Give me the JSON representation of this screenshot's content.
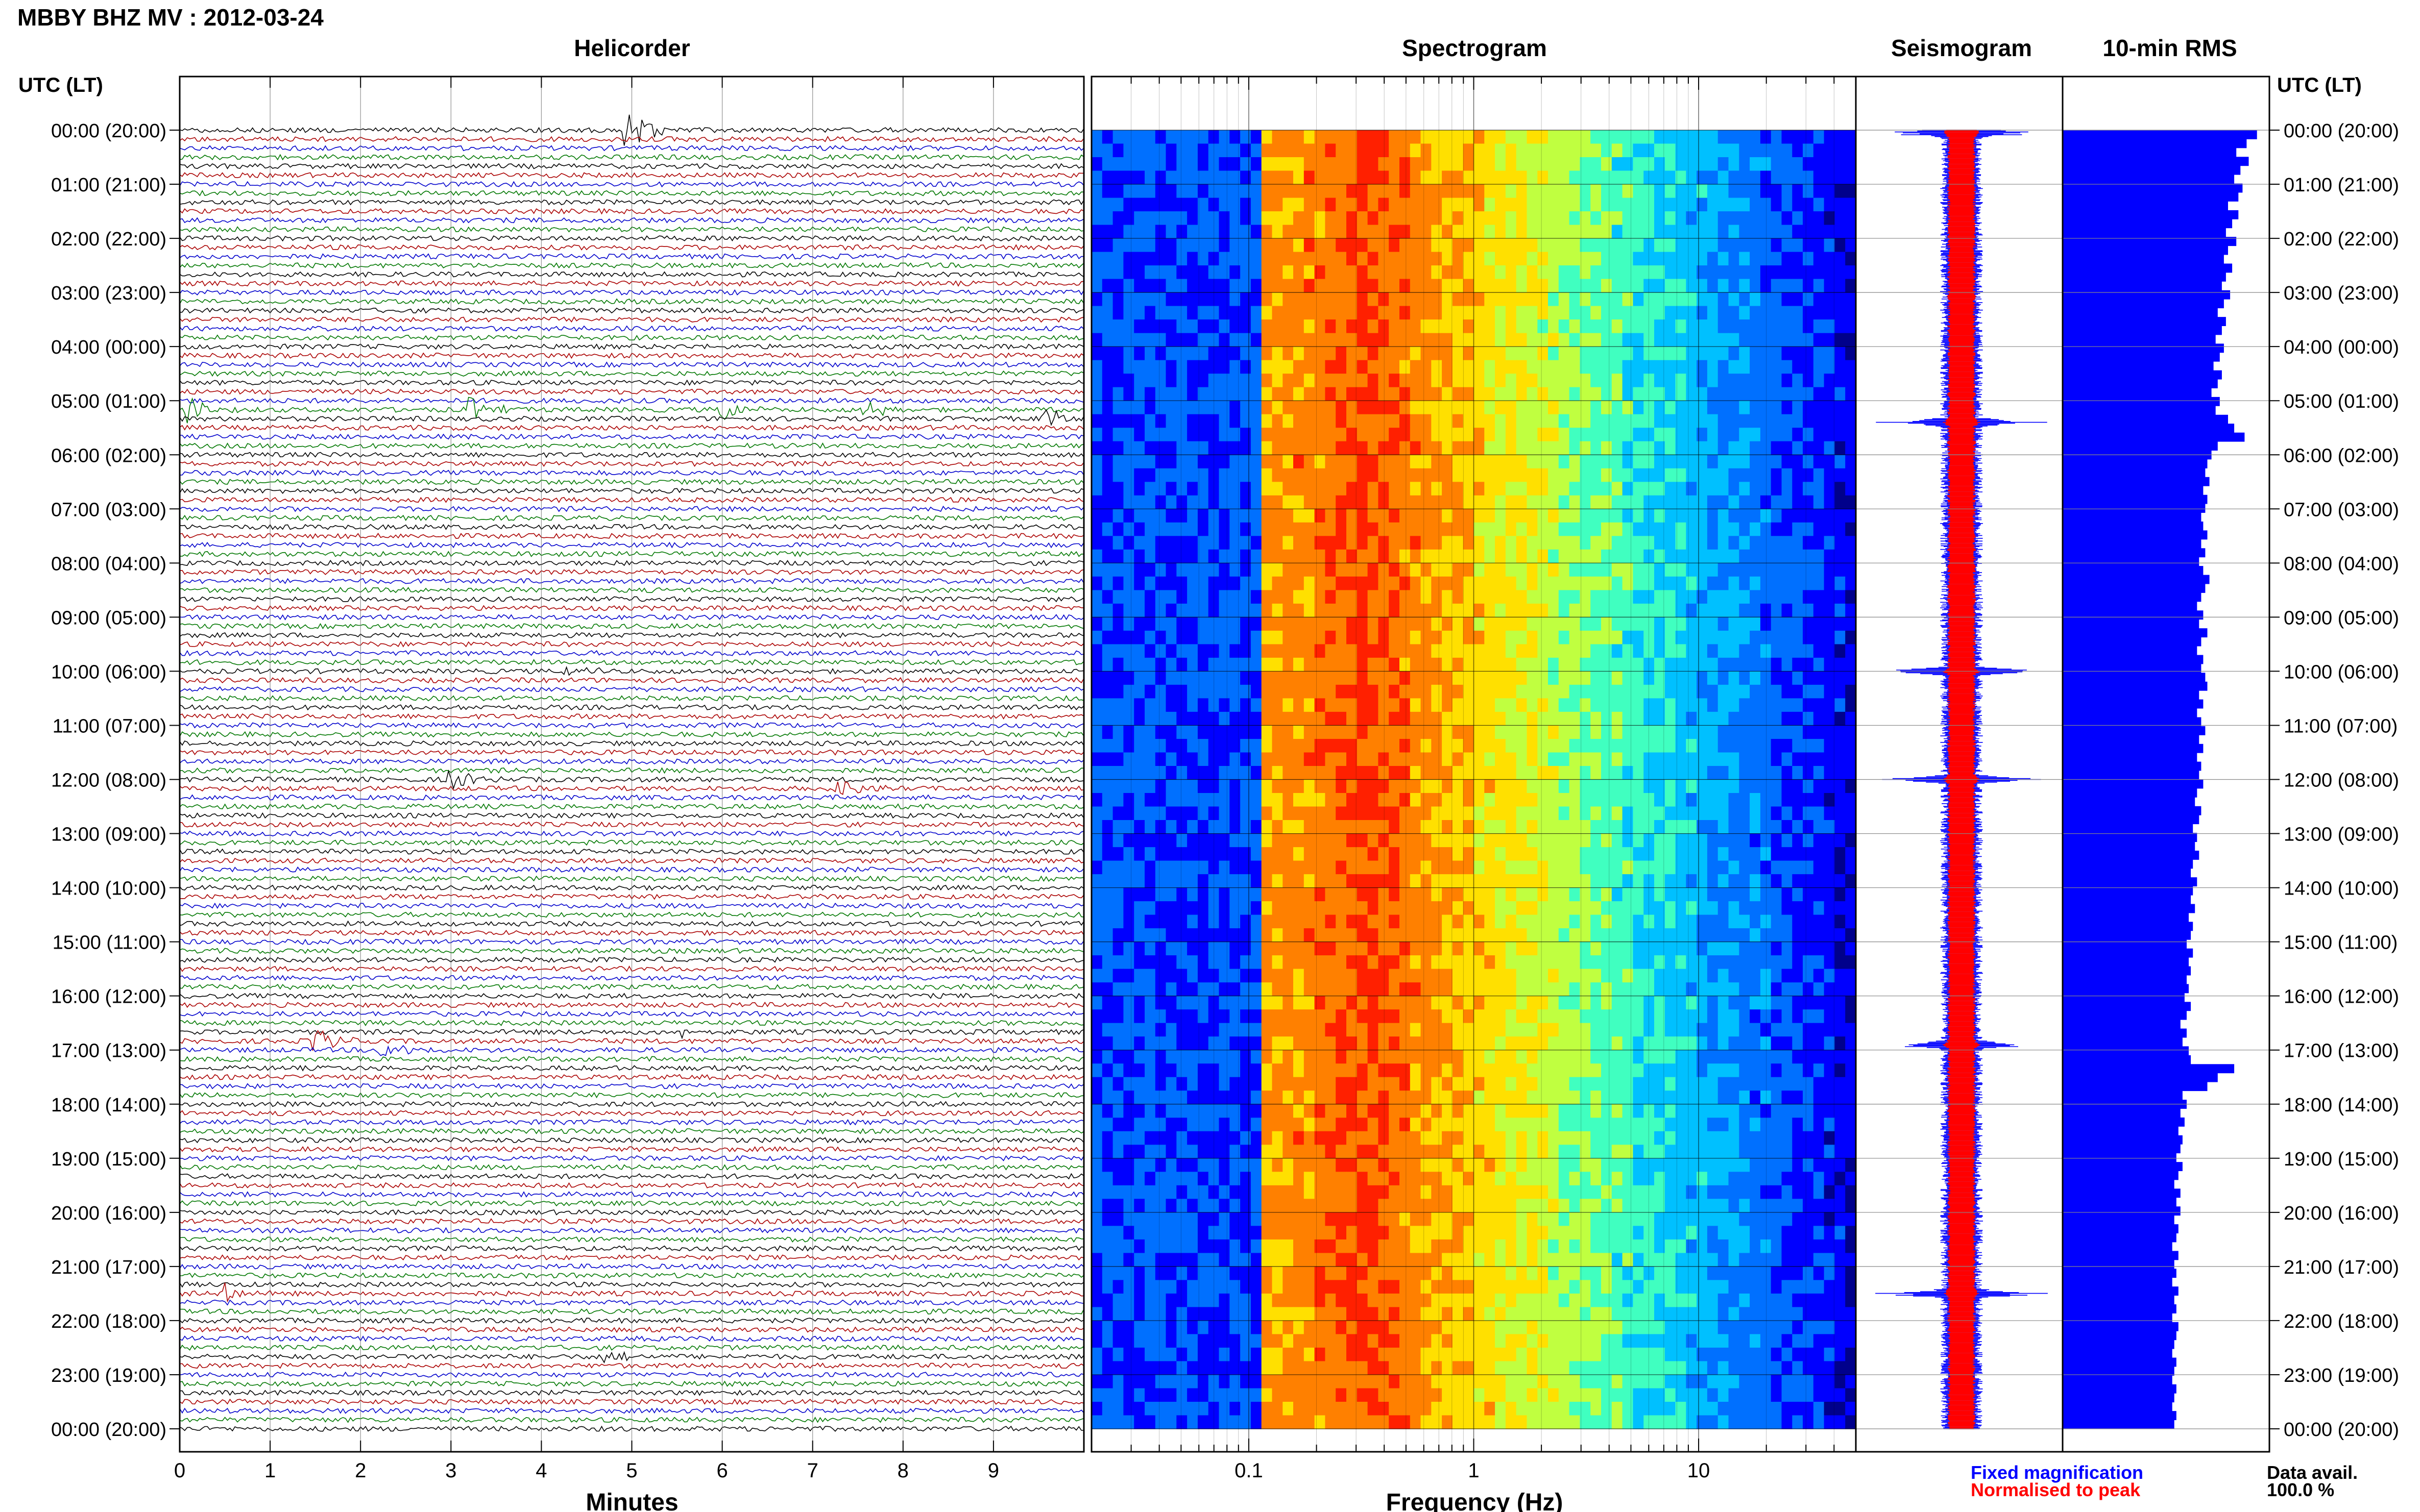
{
  "header": {
    "station_title": "MBBY BHZ MV : 2012-03-24",
    "left_axis_label": "UTC (LT)",
    "right_axis_label": "UTC (LT)"
  },
  "panels": {
    "helicorder": "Helicorder",
    "spectrogram": "Spectrogram",
    "seismogram": "Seismogram",
    "rms": "10-min RMS"
  },
  "legend": {
    "fixed": "Fixed magnification",
    "normalised": "Normalised to peak",
    "fixed_color": "#0000ff",
    "normalised_color": "#ff0000",
    "data_avail_label": "Data avail.",
    "data_avail_value": "100.0 %"
  },
  "chart_data": [
    {
      "type": "line",
      "panel": "helicorder",
      "xlabel": "Minutes",
      "x_ticks": [
        "0",
        "1",
        "2",
        "3",
        "4",
        "5",
        "6",
        "7",
        "8",
        "9"
      ],
      "xlim": [
        0,
        10
      ],
      "y_tick_labels": [
        "00:00 (20:00)",
        "01:00 (21:00)",
        "02:00 (22:00)",
        "03:00 (23:00)",
        "04:00 (00:00)",
        "05:00 (01:00)",
        "06:00 (02:00)",
        "07:00 (03:00)",
        "08:00 (04:00)",
        "09:00 (05:00)",
        "10:00 (06:00)",
        "11:00 (07:00)",
        "12:00 (08:00)",
        "13:00 (09:00)",
        "14:00 (10:00)",
        "15:00 (11:00)",
        "16:00 (12:00)",
        "17:00 (13:00)",
        "18:00 (14:00)",
        "19:00 (15:00)",
        "20:00 (16:00)",
        "21:00 (17:00)",
        "22:00 (18:00)",
        "23:00 (19:00)",
        "00:00 (20:00)"
      ],
      "lines_per_hour": 6,
      "line_colors": [
        "#000000",
        "#aa0000",
        "#0000cc",
        "#007700"
      ],
      "events": [
        {
          "hour": 0.0,
          "minute": 4.95,
          "amp": 2.5
        },
        {
          "hour": 5.1,
          "minute": 0.1,
          "amp": 1.5
        },
        {
          "hour": 5.2,
          "minute": 3.2,
          "amp": 1.5
        },
        {
          "hour": 5.2,
          "minute": 6.0,
          "amp": 1.2
        },
        {
          "hour": 5.2,
          "minute": 7.6,
          "amp": 1.0
        },
        {
          "hour": 5.4,
          "minute": 9.6,
          "amp": 1.2
        },
        {
          "hour": 10.0,
          "minute": 4.3,
          "amp": 0.8
        },
        {
          "hour": 12.0,
          "minute": 3.0,
          "amp": 1.2
        },
        {
          "hour": 12.1,
          "minute": 7.3,
          "amp": 1.4
        },
        {
          "hour": 16.8,
          "minute": 1.5,
          "amp": 1.5
        },
        {
          "hour": 17.0,
          "minute": 2.2,
          "amp": 1.4
        },
        {
          "hour": 16.6,
          "minute": 5.6,
          "amp": 0.8
        },
        {
          "hour": 21.5,
          "minute": 0.5,
          "amp": 1.0
        },
        {
          "hour": 22.7,
          "minute": 4.7,
          "amp": 0.8
        }
      ]
    },
    {
      "type": "heatmap",
      "panel": "spectrogram",
      "xlabel": "Frequency (Hz)",
      "x_scale": "log",
      "xlim": [
        0.02,
        50
      ],
      "x_ticks": [
        "0.1",
        "1",
        "10"
      ],
      "colormap": [
        "#00008b",
        "#0000ff",
        "#0070ff",
        "#00c0ff",
        "#40ffc0",
        "#c0ff40",
        "#ffe000",
        "#ff8000",
        "#ff2000"
      ],
      "peak_frequency_hz": 0.3
    },
    {
      "type": "line",
      "panel": "seismogram",
      "series": [
        {
          "name": "Fixed magnification",
          "color": "#0000ff"
        },
        {
          "name": "Normalised to peak",
          "color": "#ff0000"
        }
      ],
      "events_hour": [
        0.05,
        5.4,
        10.0,
        12.0,
        16.9,
        21.5
      ]
    },
    {
      "type": "bar",
      "panel": "rms",
      "orientation": "horizontal",
      "bin_minutes": 10,
      "values": [
        0.94,
        0.89,
        0.84,
        0.9,
        0.86,
        0.83,
        0.87,
        0.85,
        0.8,
        0.85,
        0.82,
        0.79,
        0.84,
        0.8,
        0.78,
        0.82,
        0.79,
        0.77,
        0.81,
        0.78,
        0.75,
        0.79,
        0.77,
        0.74,
        0.78,
        0.76,
        0.73,
        0.77,
        0.75,
        0.72,
        0.76,
        0.74,
        0.8,
        0.83,
        0.88,
        0.75,
        0.72,
        0.7,
        0.69,
        0.71,
        0.68,
        0.7,
        0.69,
        0.67,
        0.68,
        0.7,
        0.67,
        0.69,
        0.66,
        0.68,
        0.71,
        0.69,
        0.67,
        0.65,
        0.68,
        0.66,
        0.7,
        0.67,
        0.65,
        0.68,
        0.67,
        0.69,
        0.7,
        0.66,
        0.68,
        0.65,
        0.67,
        0.69,
        0.66,
        0.68,
        0.65,
        0.67,
        0.66,
        0.68,
        0.65,
        0.64,
        0.67,
        0.66,
        0.63,
        0.65,
        0.64,
        0.66,
        0.63,
        0.62,
        0.65,
        0.63,
        0.62,
        0.64,
        0.61,
        0.63,
        0.62,
        0.6,
        0.63,
        0.61,
        0.62,
        0.6,
        0.61,
        0.59,
        0.62,
        0.6,
        0.57,
        0.6,
        0.58,
        0.61,
        0.62,
        0.83,
        0.75,
        0.7,
        0.58,
        0.6,
        0.57,
        0.59,
        0.56,
        0.58,
        0.57,
        0.55,
        0.58,
        0.56,
        0.54,
        0.57,
        0.55,
        0.57,
        0.54,
        0.56,
        0.55,
        0.53,
        0.56,
        0.54,
        0.55,
        0.53,
        0.56,
        0.54,
        0.55,
        0.53,
        0.56,
        0.55,
        0.54,
        0.53,
        0.55,
        0.54,
        0.53,
        0.55,
        0.54,
        0.53,
        0.55,
        0.54
      ]
    }
  ]
}
